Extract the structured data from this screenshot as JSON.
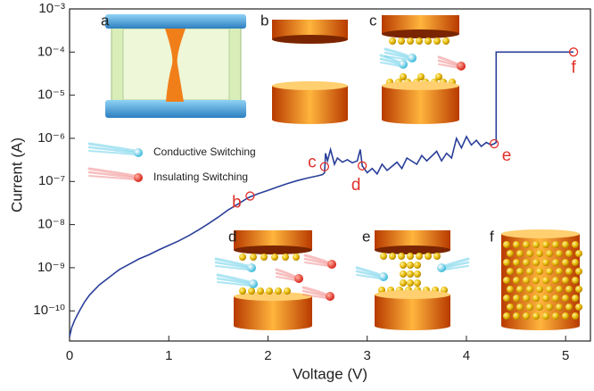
{
  "chart_data": {
    "type": "line",
    "xlabel": "Voltage (V)",
    "ylabel": "Current (A)",
    "log_y": true,
    "xlim": [
      0,
      5.25
    ],
    "ylim": [
      2e-11,
      0.001
    ],
    "xticks": [
      0,
      1,
      2,
      3,
      4,
      5
    ],
    "yticks": [
      {
        "value": 1e-10,
        "label": "10⁻¹⁰"
      },
      {
        "value": 1e-09,
        "label": "10⁻⁹"
      },
      {
        "value": 1e-08,
        "label": "10⁻⁸"
      },
      {
        "value": 1e-07,
        "label": "10⁻⁷"
      },
      {
        "value": 1e-06,
        "label": "10⁻⁶"
      },
      {
        "value": 1e-05,
        "label": "10⁻⁵"
      },
      {
        "value": 0.0001,
        "label": "10⁻⁴"
      },
      {
        "value": 0.001,
        "label": "10⁻³"
      }
    ],
    "series": [
      {
        "color": "#2b3f99",
        "x": [
          0,
          0.02,
          0.05,
          0.1,
          0.15,
          0.2,
          0.3,
          0.4,
          0.5,
          0.6,
          0.7,
          0.8,
          0.9,
          1.0,
          1.1,
          1.2,
          1.3,
          1.4,
          1.5,
          1.6,
          1.7,
          1.8,
          1.9,
          2.0,
          2.1,
          2.2,
          2.3,
          2.4,
          2.5,
          2.55,
          2.57,
          2.58,
          2.6,
          2.63,
          2.67,
          2.7,
          2.75,
          2.8,
          2.85,
          2.9,
          2.93,
          2.95,
          3.0,
          3.05,
          3.1,
          3.15,
          3.2,
          3.3,
          3.35,
          3.4,
          3.5,
          3.55,
          3.6,
          3.7,
          3.75,
          3.8,
          3.85,
          3.9,
          3.95,
          4.0,
          4.05,
          4.1,
          4.15,
          4.2,
          4.25,
          4.28,
          4.3,
          4.3,
          5.08
        ],
        "values": [
          2.5e-11,
          4e-11,
          6e-11,
          1e-10,
          1.6e-10,
          2.3e-10,
          4e-10,
          6e-10,
          9e-10,
          1.2e-09,
          1.6e-09,
          2e-09,
          2.6e-09,
          3.3e-09,
          4.2e-09,
          5.5e-09,
          7.5e-09,
          1.05e-08,
          1.5e-08,
          2.2e-08,
          3e-08,
          4.2e-08,
          5.2e-08,
          6.2e-08,
          7.5e-08,
          9e-08,
          1.05e-07,
          1.2e-07,
          1.35e-07,
          1.45e-07,
          1.6e-07,
          4.5e-07,
          3e-07,
          5.5e-07,
          2.5e-07,
          3.5e-07,
          2.8e-07,
          3.2e-07,
          2.7e-07,
          3e-07,
          5.5e-07,
          2.3e-07,
          1.6e-07,
          2e-07,
          1.5e-07,
          2.5e-07,
          1.8e-07,
          2.8e-07,
          2e-07,
          3.5e-07,
          2.5e-07,
          4e-07,
          3e-07,
          5e-07,
          3e-07,
          4.5e-07,
          3.5e-07,
          1e-06,
          6e-07,
          1.1e-06,
          7e-07,
          9e-07,
          6.5e-07,
          8e-07,
          7e-07,
          7.5e-07,
          8e-07,
          0.0001,
          0.0001
        ]
      }
    ],
    "markers": {
      "color": "#e0302a",
      "labels": [
        "b",
        "c",
        "d",
        "e",
        "f"
      ],
      "x": [
        1.82,
        2.57,
        2.95,
        4.28,
        5.08
      ],
      "values": [
        4.6e-08,
        2.2e-07,
        2.3e-07,
        7.5e-07,
        0.0001
      ]
    },
    "legend": [
      "Conductive Switching",
      "Insulating Switching"
    ],
    "insets": [
      "a",
      "b",
      "c",
      "d",
      "e",
      "f"
    ]
  }
}
